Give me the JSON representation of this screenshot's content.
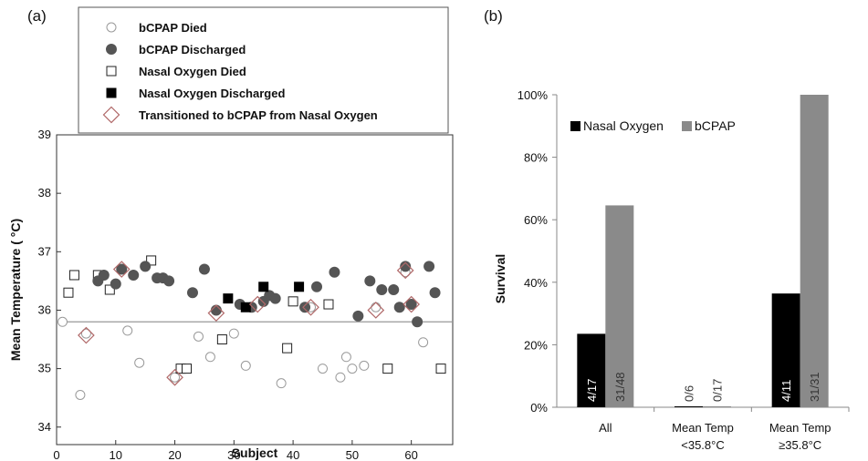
{
  "chart_data": [
    {
      "type": "scatter",
      "panel_label": "(a)",
      "xlabel": "Subject",
      "ylabel": "Mean Temperature ( °C)",
      "xlim": [
        0,
        67
      ],
      "ylim": [
        33.7,
        39
      ],
      "xticks": [
        0,
        10,
        20,
        30,
        40,
        50,
        60
      ],
      "yticks": [
        34,
        35,
        36,
        37,
        38,
        39
      ],
      "threshold_line": 35.8,
      "legend_position": "top",
      "series": [
        {
          "name": "bCPAP Died",
          "marker": "open-circle",
          "color": "#9a9a9a",
          "points": [
            [
              1,
              35.8
            ],
            [
              4,
              34.55
            ],
            [
              5,
              35.6
            ],
            [
              12,
              35.65
            ],
            [
              14,
              35.1
            ],
            [
              20,
              34.85
            ],
            [
              24,
              35.55
            ],
            [
              26,
              35.2
            ],
            [
              30,
              35.6
            ],
            [
              32,
              35.05
            ],
            [
              38,
              34.75
            ],
            [
              43,
              36.05
            ],
            [
              45,
              35.0
            ],
            [
              48,
              34.85
            ],
            [
              49,
              35.2
            ],
            [
              50,
              35.0
            ],
            [
              52,
              35.05
            ],
            [
              54,
              36.05
            ],
            [
              59,
              36.65
            ],
            [
              62,
              35.45
            ]
          ]
        },
        {
          "name": "bCPAP Discharged",
          "marker": "filled-circle",
          "color": "#555555",
          "points": [
            [
              7,
              36.5
            ],
            [
              8,
              36.6
            ],
            [
              10,
              36.45
            ],
            [
              11,
              36.7
            ],
            [
              13,
              36.6
            ],
            [
              15,
              36.75
            ],
            [
              17,
              36.55
            ],
            [
              18,
              36.55
            ],
            [
              19,
              36.5
            ],
            [
              23,
              36.3
            ],
            [
              25,
              36.7
            ],
            [
              27,
              36.0
            ],
            [
              31,
              36.1
            ],
            [
              33,
              36.05
            ],
            [
              35,
              36.15
            ],
            [
              36,
              36.25
            ],
            [
              37,
              36.2
            ],
            [
              42,
              36.05
            ],
            [
              44,
              36.4
            ],
            [
              47,
              36.65
            ],
            [
              51,
              35.9
            ],
            [
              53,
              36.5
            ],
            [
              55,
              36.35
            ],
            [
              57,
              36.35
            ],
            [
              58,
              36.05
            ],
            [
              59,
              36.75
            ],
            [
              60,
              36.1
            ],
            [
              61,
              35.8
            ],
            [
              63,
              36.75
            ],
            [
              64,
              36.3
            ]
          ]
        },
        {
          "name": "Nasal Oxygen Died",
          "marker": "open-square",
          "color": "#222222",
          "points": [
            [
              2,
              36.3
            ],
            [
              3,
              36.6
            ],
            [
              7,
              36.6
            ],
            [
              9,
              36.35
            ],
            [
              16,
              36.85
            ],
            [
              21,
              35.0
            ],
            [
              22,
              35.0
            ],
            [
              28,
              35.5
            ],
            [
              39,
              35.35
            ],
            [
              40,
              36.15
            ],
            [
              46,
              36.1
            ],
            [
              56,
              35.0
            ],
            [
              65,
              35.0
            ]
          ]
        },
        {
          "name": "Nasal Oxygen Discharged",
          "marker": "filled-square",
          "color": "#000000",
          "points": [
            [
              29,
              36.2
            ],
            [
              32,
              36.05
            ],
            [
              35,
              36.4
            ],
            [
              41,
              36.4
            ]
          ]
        },
        {
          "name": "Transitioned to bCPAP from Nasal Oxygen",
          "marker": "open-diamond",
          "color": "#b06868",
          "points": [
            [
              5,
              35.57
            ],
            [
              11,
              36.7
            ],
            [
              20,
              34.85
            ],
            [
              27,
              35.95
            ],
            [
              34,
              36.1
            ],
            [
              43,
              36.05
            ],
            [
              54,
              36.0
            ],
            [
              59,
              36.68
            ],
            [
              60,
              36.1
            ]
          ]
        }
      ]
    },
    {
      "type": "bar",
      "panel_label": "(b)",
      "ylabel": "Survival",
      "ylim": [
        0,
        100
      ],
      "yticks": [
        "0%",
        "20%",
        "40%",
        "60%",
        "80%",
        "100%"
      ],
      "ytick_values": [
        0,
        20,
        40,
        60,
        80,
        100
      ],
      "categories": [
        [
          "All"
        ],
        [
          "Mean Temp",
          "<35.8°C"
        ],
        [
          "Mean Temp",
          "≥35.8°C"
        ]
      ],
      "legend_position": "top-left",
      "series": [
        {
          "name": "Nasal Oxygen",
          "color": "#000000",
          "values": [
            23.5,
            0,
            36.4
          ],
          "labels": [
            "4/17",
            "0/6",
            "4/11"
          ],
          "label_color": "#ffffff"
        },
        {
          "name": "bCPAP",
          "color": "#8a8a8a",
          "values": [
            64.6,
            0,
            100
          ],
          "labels": [
            "31/48",
            "0/17",
            "31/31"
          ],
          "label_color": "#333333"
        }
      ]
    }
  ]
}
